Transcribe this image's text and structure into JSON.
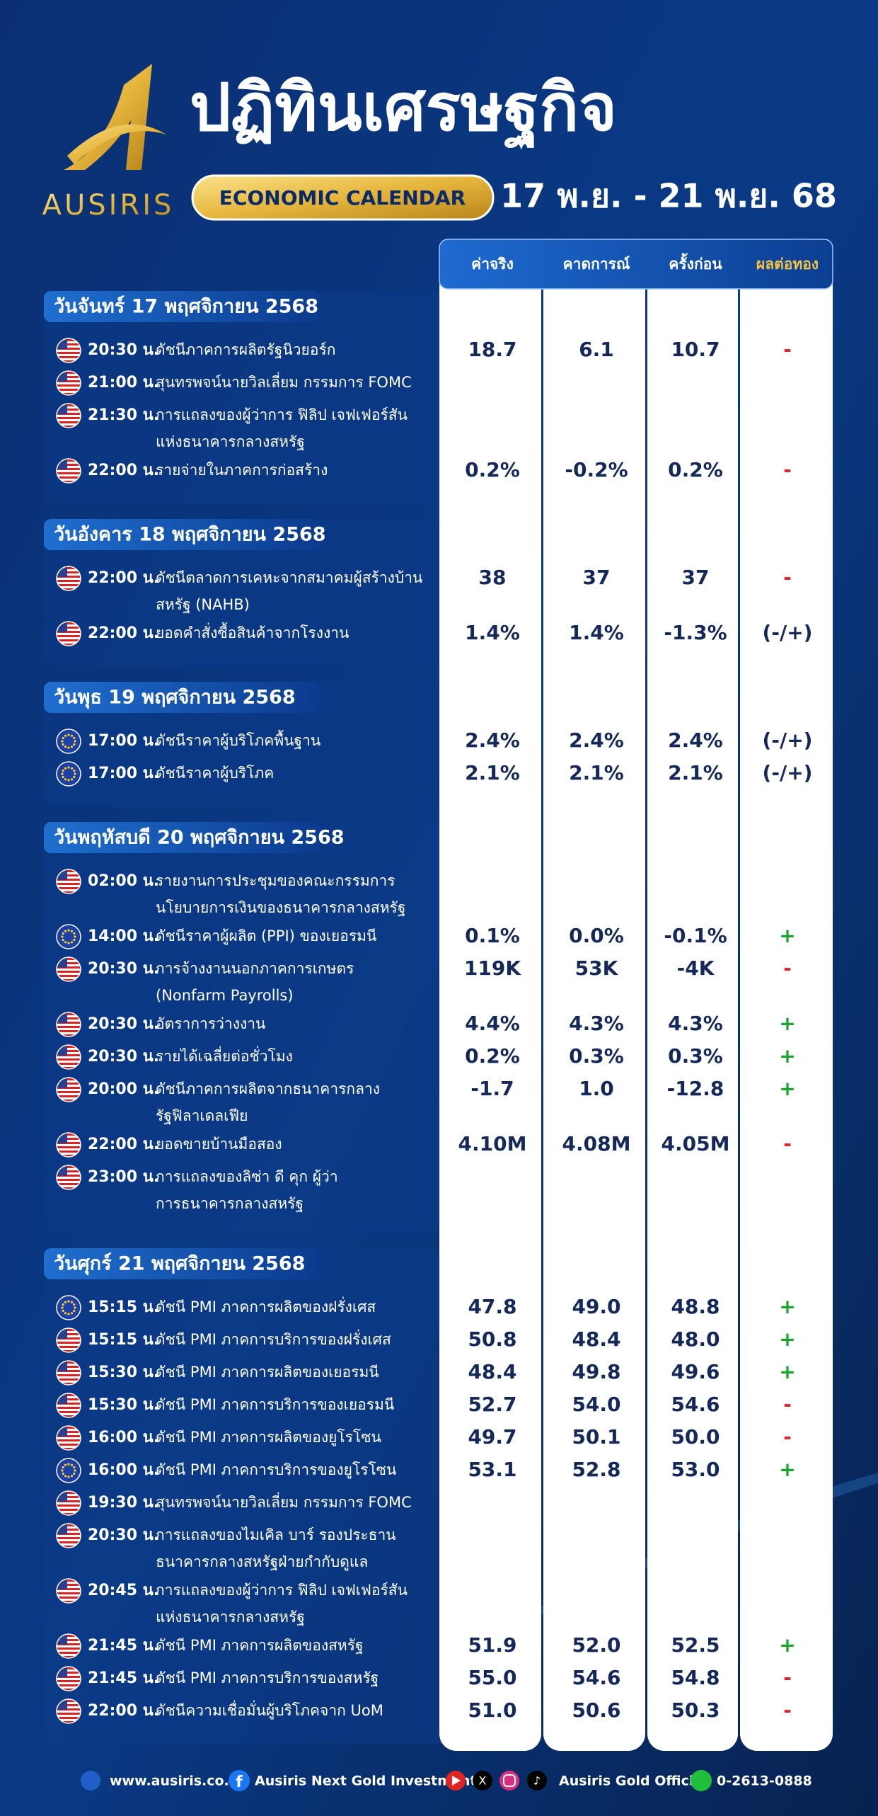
{
  "header": {
    "title": "ปฏิทินเศรษฐกิจ",
    "brand": "AUSIRIS",
    "badge": "ECONOMIC CALENDAR",
    "date_range": "17 พ.ย. - 21 พ.ย. 68"
  },
  "columns": [
    "ค่าจริง",
    "คาดการณ์",
    "ครั้งก่อน",
    "ผลต่อทอง"
  ],
  "days": [
    {
      "label": "วันจันทร์ 17 พฤศจิกายน 2568",
      "events": [
        {
          "time": "20:30 น.",
          "flag": "us",
          "title": [
            "ดัชนีภาคการผลิตรัฐนิวยอร์ก"
          ],
          "actual": "18.7",
          "forecast": "6.1",
          "previous": "10.7",
          "effect": {
            "text": "-",
            "color": "#e8202a"
          }
        },
        {
          "time": "21:00 น.",
          "flag": "us",
          "title": [
            "สุนทรพจน์นายวิลเลี่ยม กรรมการ FOMC"
          ]
        },
        {
          "time": "21:30 น.",
          "flag": "us",
          "title": [
            "การแถลงของผู้ว่าการ ฟิลิป เจฟเฟอร์สัน",
            "แห่งธนาคารกลางสหรัฐ"
          ]
        },
        {
          "time": "22:00 น.",
          "flag": "us",
          "title": [
            "รายจ่ายในภาคการก่อสร้าง"
          ],
          "actual": "0.2%",
          "forecast": "-0.2%",
          "previous": "0.2%",
          "effect": {
            "text": "-",
            "color": "#e8202a"
          }
        }
      ]
    },
    {
      "label": "วันอังคาร 18 พฤศจิกายน 2568",
      "events": [
        {
          "time": "22:00 น.",
          "flag": "us",
          "title": [
            "ดัชนีตลาดการเคหะจากสมาคมผู้สร้างบ้าน",
            "สหรัฐ (NAHB)"
          ],
          "actual": "38",
          "forecast": "37",
          "previous": "37",
          "effect": {
            "text": "-",
            "color": "#e8202a"
          }
        },
        {
          "time": "22:00 น.",
          "flag": "us",
          "title": [
            "ยอดคำสั่งซื้อสินค้าจากโรงงาน"
          ],
          "actual": "1.4%",
          "forecast": "1.4%",
          "previous": "-1.3%",
          "effect": {
            "text": "(-/+)",
            "color": "#14285a"
          }
        }
      ]
    },
    {
      "label": "วันพุธ 19 พฤศจิกายน 2568",
      "events": [
        {
          "time": "17:00 น.",
          "flag": "eu",
          "title": [
            "ดัชนีราคาผู้บริโภคพื้นฐาน"
          ],
          "actual": "2.4%",
          "forecast": "2.4%",
          "previous": "2.4%",
          "effect": {
            "text": "(-/+)",
            "color": "#14285a"
          }
        },
        {
          "time": "17:00 น.",
          "flag": "eu",
          "title": [
            "ดัชนีราคาผู้บริโภค"
          ],
          "actual": "2.1%",
          "forecast": "2.1%",
          "previous": "2.1%",
          "effect": {
            "text": "(-/+)",
            "color": "#14285a"
          }
        }
      ]
    },
    {
      "label": "วันพฤหัสบดี 20 พฤศจิกายน 2568",
      "events": [
        {
          "time": "02:00 น.",
          "flag": "us",
          "title": [
            "รายงานการประชุมของคณะกรรมการ",
            "นโยบายการเงินของธนาคารกลางสหรัฐ"
          ]
        },
        {
          "time": "14:00 น.",
          "flag": "eu",
          "title": [
            "ดัชนีราคาผู้ผลิต (PPI) ของเยอรมนี"
          ],
          "actual": "0.1%",
          "forecast": "0.0%",
          "previous": "-0.1%",
          "effect": {
            "text": "+",
            "color": "#18a52e"
          }
        },
        {
          "time": "20:30 น.",
          "flag": "us",
          "title": [
            "การจ้างงานนอกภาคการเกษตร",
            "(Nonfarm Payrolls)"
          ],
          "actual": "119K",
          "forecast": "53K",
          "previous": "-4K",
          "effect": {
            "text": "-",
            "color": "#e8202a"
          }
        },
        {
          "time": "20:30 น.",
          "flag": "us",
          "title": [
            "อัตราการว่างงาน"
          ],
          "actual": "4.4%",
          "forecast": "4.3%",
          "previous": "4.3%",
          "effect": {
            "text": "+",
            "color": "#18a52e"
          }
        },
        {
          "time": "20:30 น.",
          "flag": "us",
          "title": [
            "รายได้เฉลี่ยต่อชั่วโมง"
          ],
          "actual": "0.2%",
          "forecast": "0.3%",
          "previous": "0.3%",
          "effect": {
            "text": "+",
            "color": "#18a52e"
          }
        },
        {
          "time": "20:00 น.",
          "flag": "us",
          "title": [
            "ดัชนีภาคการผลิตจากธนาคารกลาง",
            "รัฐฟิลาเดลเฟีย"
          ],
          "actual": "-1.7",
          "forecast": "1.0",
          "previous": "-12.8",
          "effect": {
            "text": "+",
            "color": "#18a52e"
          }
        },
        {
          "time": "22:00 น.",
          "flag": "us",
          "title": [
            "ยอดขายบ้านมือสอง"
          ],
          "actual": "4.10M",
          "forecast": "4.08M",
          "previous": "4.05M",
          "effect": {
            "text": "-",
            "color": "#e8202a"
          }
        },
        {
          "time": "23:00 น.",
          "flag": "us",
          "title": [
            "การแถลงของลิซ่า ดี คุก ผู้ว่า",
            "การธนาคารกลางสหรัฐ"
          ]
        }
      ]
    },
    {
      "label": "วันศุกร์ 21 พฤศจิกายน 2568",
      "events": [
        {
          "time": "15:15 น.",
          "flag": "eu",
          "title": [
            "ดัชนี PMI ภาคการผลิตของฝรั่งเศส"
          ],
          "actual": "47.8",
          "forecast": "49.0",
          "previous": "48.8",
          "effect": {
            "text": "+",
            "color": "#18a52e"
          }
        },
        {
          "time": "15:15 น.",
          "flag": "us",
          "title": [
            "ดัชนี PMI ภาคการบริการของฝรั่งเศส"
          ],
          "actual": "50.8",
          "forecast": "48.4",
          "previous": "48.0",
          "effect": {
            "text": "+",
            "color": "#18a52e"
          }
        },
        {
          "time": "15:30 น.",
          "flag": "us",
          "title": [
            "ดัชนี PMI ภาคการผลิตของเยอรมนี"
          ],
          "actual": "48.4",
          "forecast": "49.8",
          "previous": "49.6",
          "effect": {
            "text": "+",
            "color": "#18a52e"
          }
        },
        {
          "time": "15:30 น.",
          "flag": "us",
          "title": [
            "ดัชนี PMI ภาคการบริการของเยอรมนี"
          ],
          "actual": "52.7",
          "forecast": "54.0",
          "previous": "54.6",
          "effect": {
            "text": "-",
            "color": "#e8202a"
          }
        },
        {
          "time": "16:00 น.",
          "flag": "us",
          "title": [
            "ดัชนี PMI ภาคการผลิตของยูโรโซน"
          ],
          "actual": "49.7",
          "forecast": "50.1",
          "previous": "50.0",
          "effect": {
            "text": "-",
            "color": "#e8202a"
          }
        },
        {
          "time": "16:00 น.",
          "flag": "eu",
          "title": [
            "ดัชนี PMI ภาคการบริการของยูโรโซน"
          ],
          "actual": "53.1",
          "forecast": "52.8",
          "previous": "53.0",
          "effect": {
            "text": "+",
            "color": "#18a52e"
          }
        },
        {
          "time": "19:30 น.",
          "flag": "us",
          "title": [
            "สุนทรพจน์นายวิลเลี่ยม กรรมการ FOMC"
          ]
        },
        {
          "time": "20:30 น.",
          "flag": "us",
          "title": [
            "การแถลงของไมเคิล บาร์ รองประธาน",
            "ธนาคารกลางสหรัฐฝ่ายกำกับดูแล"
          ]
        },
        {
          "time": "20:45 น.",
          "flag": "us",
          "title": [
            "การแถลงของผู้ว่าการ ฟิลิป เจฟเฟอร์สัน",
            "แห่งธนาคารกลางสหรัฐ"
          ]
        },
        {
          "time": "21:45 น.",
          "flag": "us",
          "title": [
            "ดัชนี PMI ภาคการผลิตของสหรัฐ"
          ],
          "actual": "51.9",
          "forecast": "52.0",
          "previous": "52.5",
          "effect": {
            "text": "+",
            "color": "#18a52e"
          }
        },
        {
          "time": "21:45 น.",
          "flag": "us",
          "title": [
            "ดัชนี PMI ภาคการบริการของสหรัฐ"
          ],
          "actual": "55.0",
          "forecast": "54.6",
          "previous": "54.8",
          "effect": {
            "text": "-",
            "color": "#e8202a"
          }
        },
        {
          "time": "22:00 น.",
          "flag": "us",
          "title": [
            "ดัชนีความเชื่อมั่นผู้บริโภคจาก UoM"
          ],
          "actual": "51.0",
          "forecast": "50.6",
          "previous": "50.3",
          "effect": {
            "text": "-",
            "color": "#e8202a"
          }
        }
      ]
    }
  ],
  "footer": {
    "website": "www.ausiris.co.th",
    "facebook": "Ausiris Next Gold Investment",
    "social": "Ausiris Gold Official",
    "phone": "0-2613-0888"
  }
}
